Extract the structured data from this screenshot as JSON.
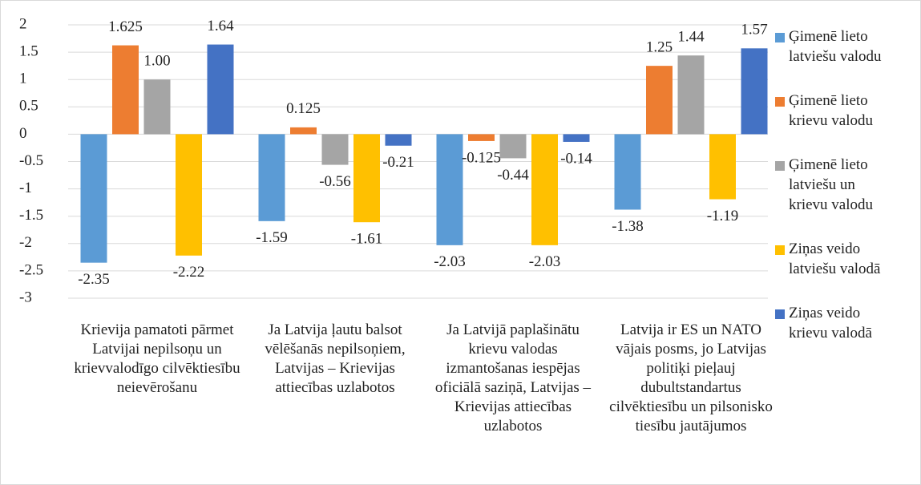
{
  "chart_data": {
    "type": "bar",
    "categories": [
      "Krievija pamatoti pārmet Latvijai nepilsoņu un krievvalodīgo cilvēktiesību neievērošanu",
      "Ja Latvija ļautu balsot vēlēšanās nepilsoņiem, Latvijas – Krievijas attiecības uzlabotos",
      "Ja Latvijā paplašinātu krievu valodas izmantošanas iespējas oficiālā saziņā, Latvijas – Krievijas attiecības uzlabotos",
      "Latvija ir ES un NATO vājais posms, jo Latvijas politiķi pieļauj dubultstandartus cilvēktiesību un pilsonisko tiesību jautājumos"
    ],
    "series": [
      {
        "name": "Ģimenē lieto latviešu valodu",
        "color": "#5b9bd5",
        "values": [
          -2.35,
          -1.59,
          -2.03,
          -1.38
        ]
      },
      {
        "name": "Ģimenē lieto krievu valodu",
        "color": "#ed7d31",
        "values": [
          1.625,
          0.125,
          -0.125,
          1.25
        ]
      },
      {
        "name": "Ģimenē lieto latviešu un krievu valodu",
        "color": "#a5a5a5",
        "values": [
          1,
          -0.56,
          -0.44,
          1.44
        ],
        "value_labels": [
          "1.00",
          "-0.56",
          "-0.44",
          "1.44"
        ]
      },
      {
        "name": "Ziņas veido latviešu valodā",
        "color": "#ffc000",
        "values": [
          -2.22,
          -1.61,
          -2.03,
          -1.19
        ]
      },
      {
        "name": "Ziņas veido krievu valodā",
        "color": "#4472c4",
        "values": [
          1.64,
          -0.21,
          -0.14,
          1.57
        ]
      }
    ],
    "ylim": [
      -3,
      2
    ],
    "yticks": [
      2,
      1.5,
      1,
      0.5,
      0,
      -0.5,
      -1,
      -1.5,
      -2,
      -2.5,
      -3
    ],
    "grid": true,
    "legend": "right"
  }
}
